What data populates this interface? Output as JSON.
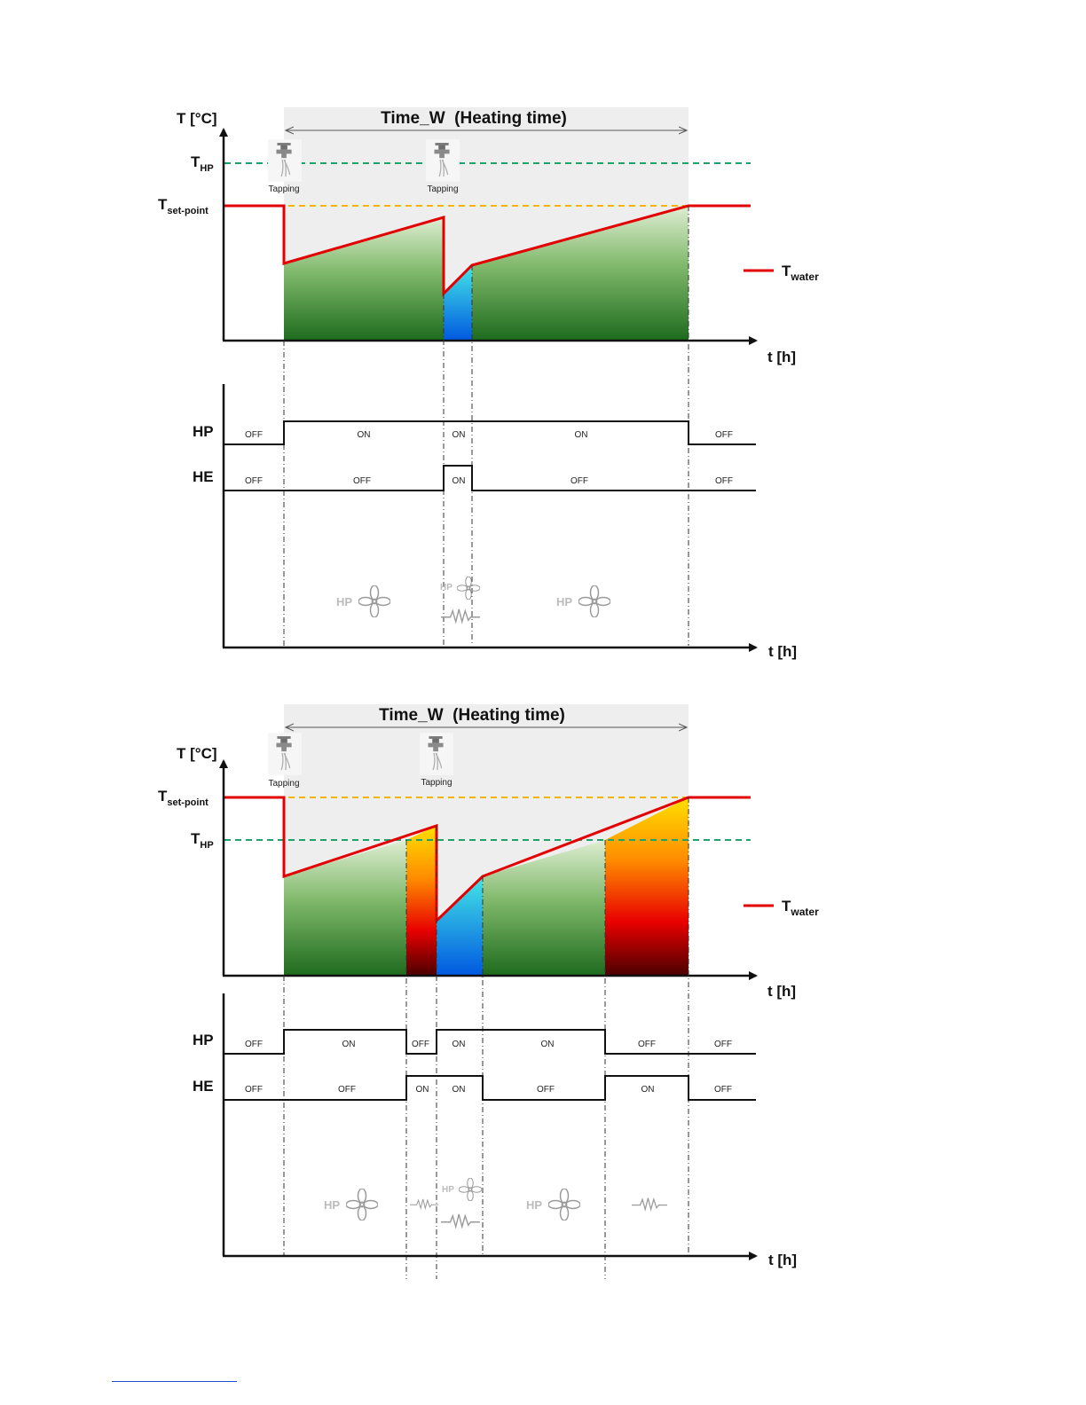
{
  "axes": {
    "temperature": "T [°C]",
    "time": "t [h]",
    "hp": "HP",
    "he": "HE"
  },
  "labels": {
    "heating_time": "Time_W  (Heating time)",
    "tapping": "Tapping",
    "t_hp_main": "T",
    "t_hp_sub": "HP",
    "t_sp_main": "T",
    "t_sp_sub": "set-point",
    "legend_main": "T",
    "legend_sub": "water"
  },
  "states": {
    "on": "ON",
    "off": "OFF"
  },
  "colors": {
    "water_line": "#e30000",
    "t_hp_line": "#1aa36a",
    "t_setpoint_line": "#f5b400",
    "hp_fill_top": "#d7e8c8",
    "hp_fill_bottom": "#1e6b1e",
    "he_fill_top": "#ffd700",
    "he_fill_bottom": "#5a0000",
    "tap_fill_top": "#40e0e0",
    "tap_fill_bottom": "#0060e0",
    "band": "#eeeeee"
  },
  "diagrams": [
    {
      "threshold_order": "T_HP above T_set-point",
      "hp_states": [
        "OFF",
        "ON",
        "ON",
        "ON",
        "OFF"
      ],
      "he_states": [
        "OFF",
        "OFF",
        "ON",
        "OFF",
        "OFF"
      ],
      "icons": [
        "hp-fan-icon",
        "hp-fan-and-resistor-icon",
        "hp-fan-icon"
      ]
    },
    {
      "threshold_order": "T_HP below T_set-point",
      "hp_states": [
        "OFF",
        "ON",
        "OFF",
        "ON",
        "ON",
        "OFF",
        "OFF"
      ],
      "he_states": [
        "OFF",
        "OFF",
        "ON",
        "ON",
        "OFF",
        "ON",
        "OFF"
      ],
      "icons": [
        "hp-fan-icon",
        "resistor-icon",
        "hp-fan-and-resistor-icon",
        "hp-fan-icon",
        "resistor-icon"
      ]
    }
  ]
}
